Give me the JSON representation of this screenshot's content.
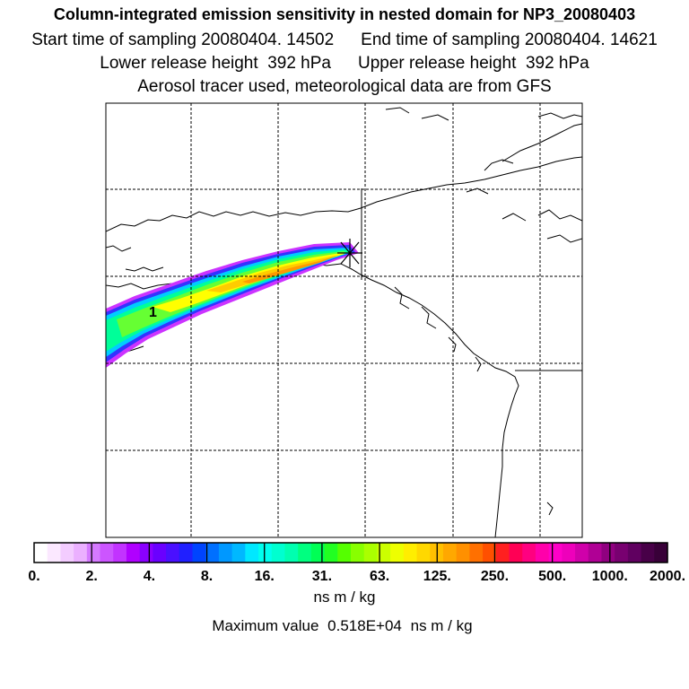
{
  "title": "Column-integrated emission sensitivity in nested domain for NP3_20080403",
  "sampling": {
    "start_label": "Start time of sampling",
    "start_value": "20080404. 14502",
    "end_label": "End time of sampling",
    "end_value": "20080404. 14621"
  },
  "release": {
    "lower_label": "Lower release height",
    "lower_value": "392 hPa",
    "upper_label": "Upper release height",
    "upper_value": "392 hPa"
  },
  "tracer_note": "Aerosol tracer used, meteorological data are from GFS",
  "map": {
    "plume_label": "1",
    "plume_colors": [
      "#cc33ff",
      "#3333ff",
      "#00ccff",
      "#00ff99",
      "#66ff33",
      "#ffff00",
      "#ffcc00",
      "#ff9900"
    ],
    "gridline_color": "#000000"
  },
  "colorbar": {
    "tick_labels": [
      "0.",
      "2.",
      "4.",
      "8.",
      "16.",
      "31.",
      "63.",
      "125.",
      "250.",
      "500.",
      "1000.",
      "2000."
    ],
    "colors": [
      "#ffffff",
      "#fbe8ff",
      "#f3ccff",
      "#ebb0ff",
      "#d57aff",
      "#cc55ff",
      "#c233ff",
      "#b000ff",
      "#8a00ff",
      "#6a00ff",
      "#4a10ff",
      "#2020ff",
      "#0044ff",
      "#0070ff",
      "#0098ff",
      "#00b8ff",
      "#00e8ff",
      "#00ffee",
      "#00ffd0",
      "#00ffb0",
      "#00ff80",
      "#00ff55",
      "#22ff22",
      "#55ff00",
      "#88ff00",
      "#aaff00",
      "#ccff00",
      "#eeff00",
      "#ffee00",
      "#ffd800",
      "#ffc000",
      "#ffa800",
      "#ff9000",
      "#ff7000",
      "#ff5000",
      "#ff2020",
      "#ff0055",
      "#ff0080",
      "#ff00aa",
      "#ff00c8",
      "#ee00bb",
      "#d000aa",
      "#b00095",
      "#900080",
      "#780070",
      "#600060",
      "#480048",
      "#380038"
    ]
  },
  "units": "ns m / kg",
  "maximum": {
    "label": "Maximum value",
    "value": "0.518E+04",
    "unit": "ns m / kg"
  }
}
